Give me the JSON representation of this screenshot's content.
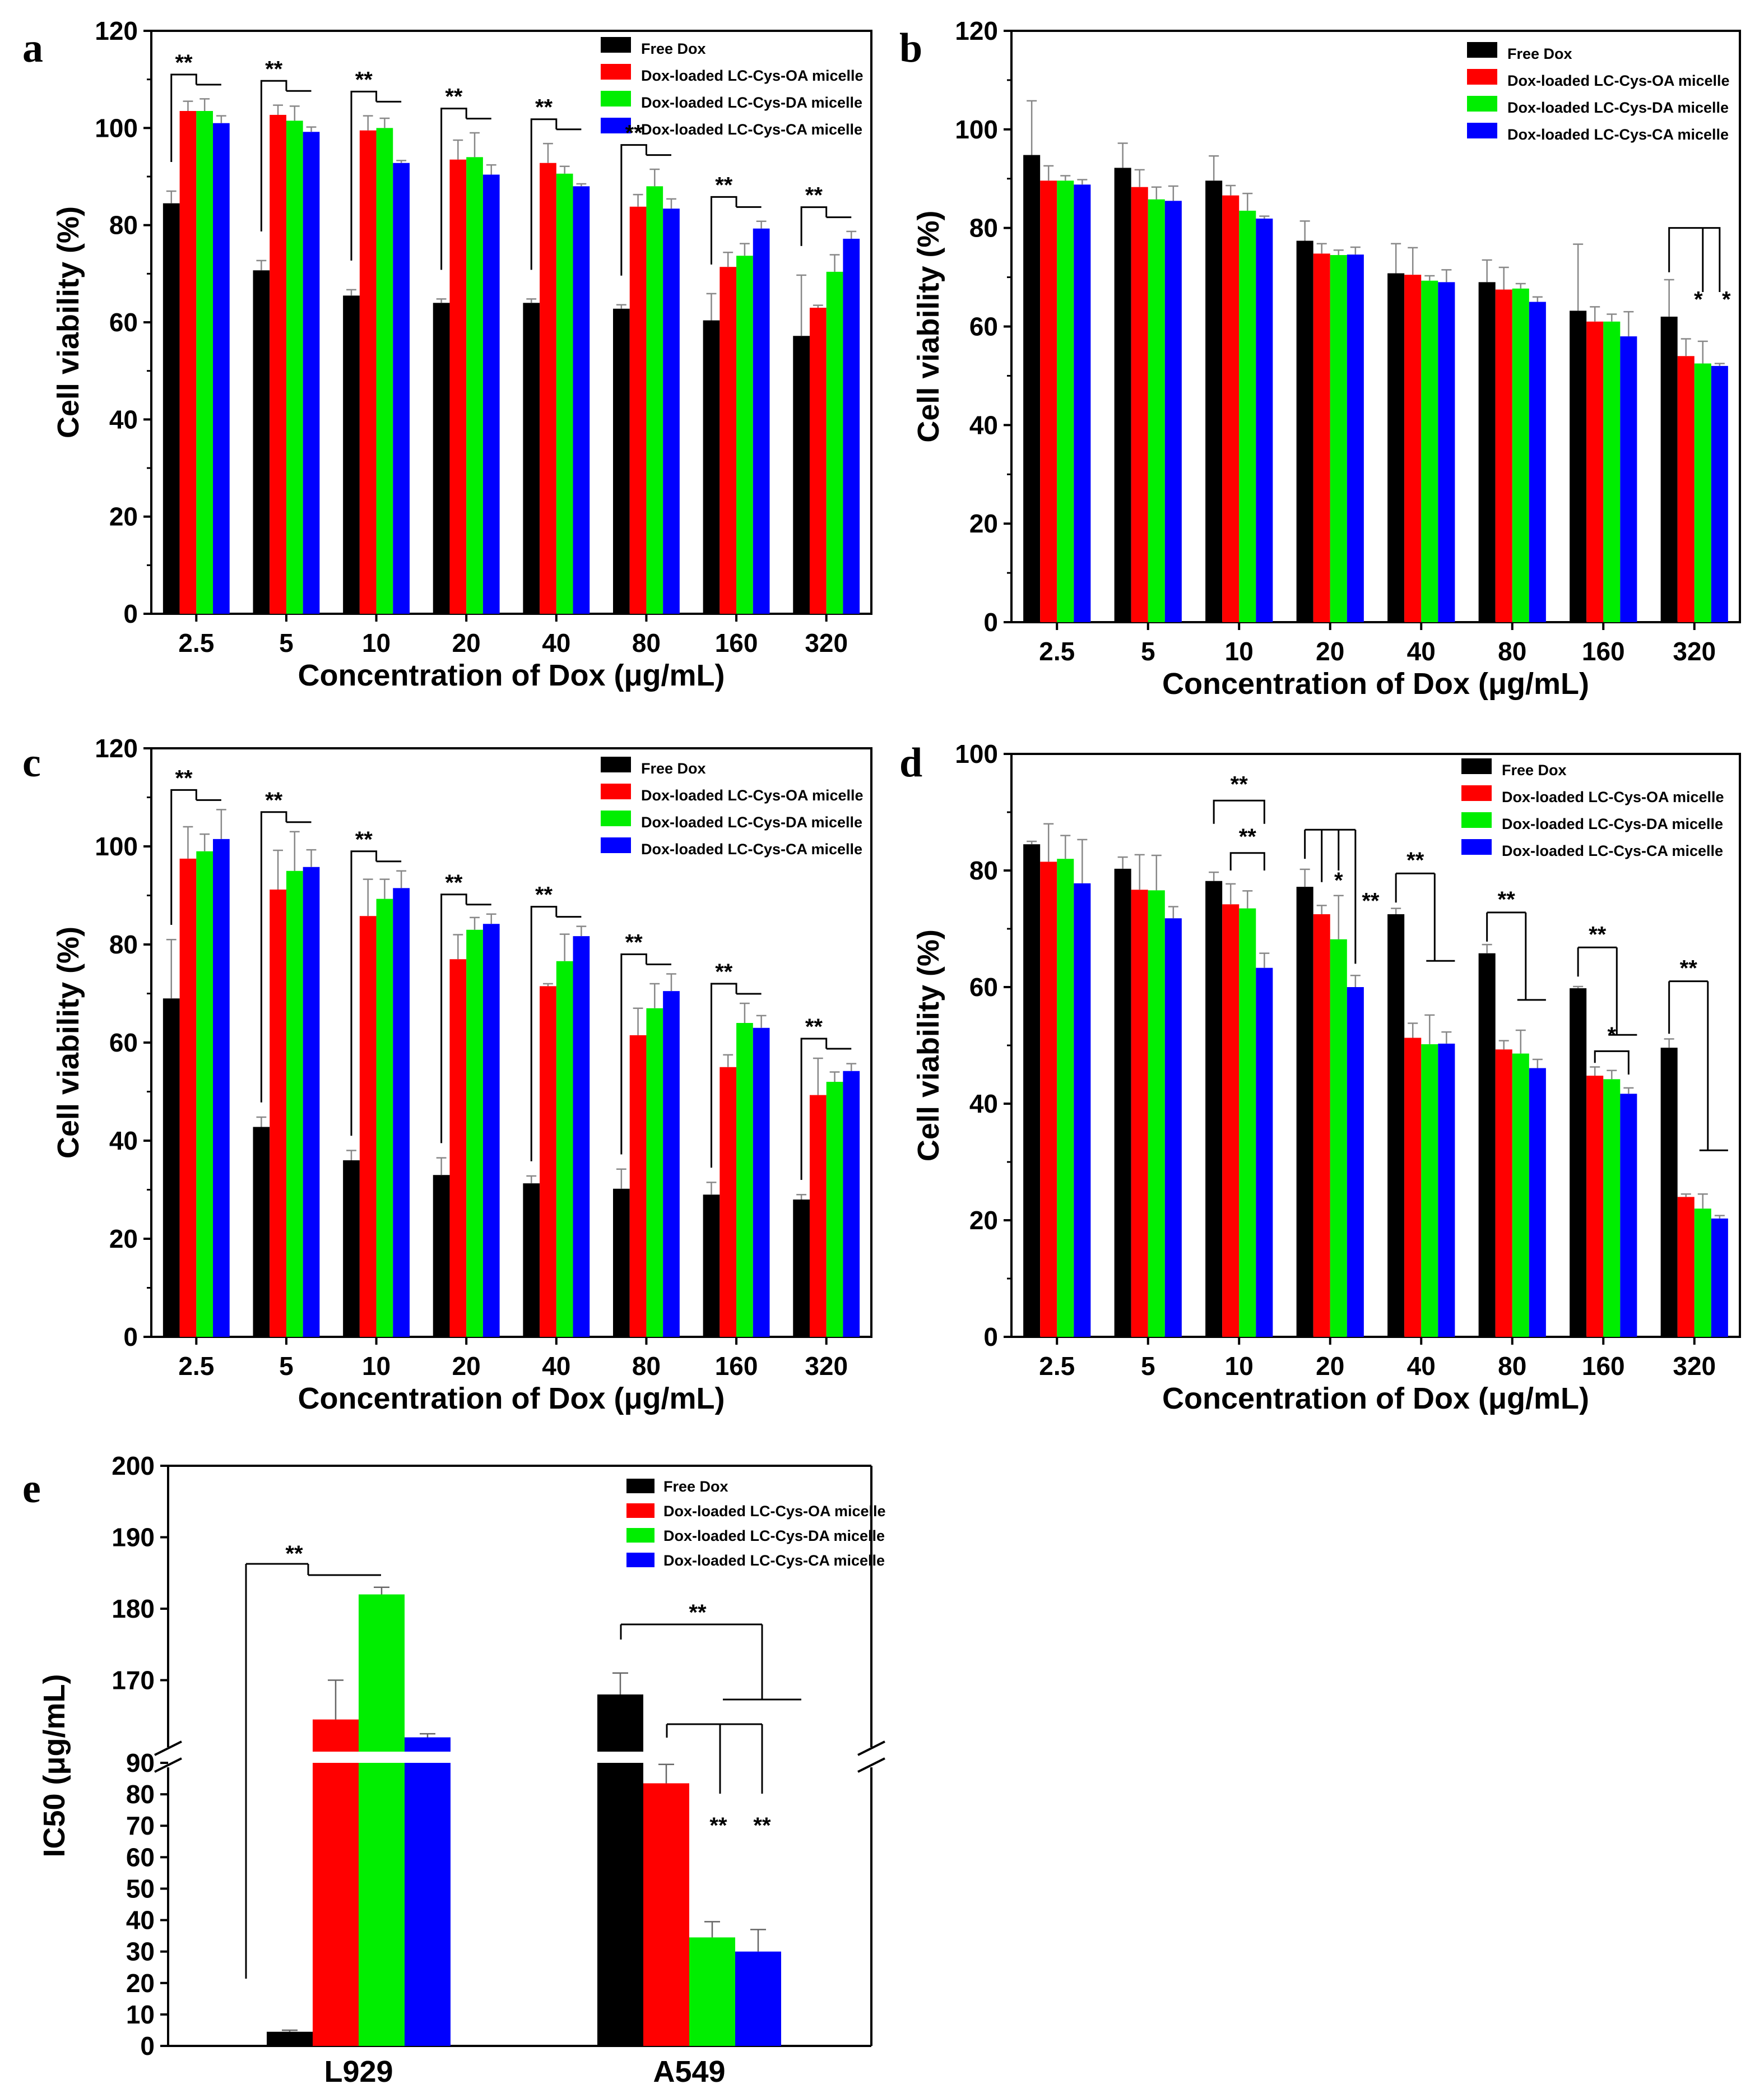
{
  "legend": [
    "Free Dox",
    "Dox-loaded LC-Cys-OA micelle",
    "Dox-loaded LC-Cys-DA micelle",
    "Dox-loaded LC-Cys-CA micelle"
  ],
  "series_colors": [
    "#000000",
    "#ff0000",
    "#00ee00",
    "#0000ff"
  ],
  "chart_data": [
    {
      "panel": "a",
      "type": "bar",
      "xlabel": "Concentration of Dox (μg/mL)",
      "ylabel": "Cell viability (%)",
      "ylim": [
        0,
        120
      ],
      "yticks": [
        "0",
        "20",
        "40",
        "60",
        "80",
        "100",
        "120"
      ],
      "categories": [
        "2.5",
        "5",
        "10",
        "20",
        "40",
        "80",
        "160",
        "320"
      ],
      "series": [
        {
          "name": "Free Dox",
          "values": [
            84.5,
            70.7,
            65.5,
            64.0,
            64.0,
            62.8,
            60.4,
            57.2
          ],
          "errors": [
            2.5,
            2.0,
            1.2,
            0.8,
            0.8,
            0.8,
            5.5,
            12.5
          ]
        },
        {
          "name": "Dox-loaded LC-Cys-OA micelle",
          "values": [
            103.5,
            102.7,
            99.5,
            93.5,
            92.8,
            83.8,
            71.4,
            63.0
          ],
          "errors": [
            2.0,
            2.0,
            3.0,
            4.0,
            4.0,
            2.5,
            3.0,
            0.5
          ]
        },
        {
          "name": "Dox-loaded LC-Cys-DA micelle",
          "values": [
            103.5,
            101.5,
            100.0,
            94.0,
            90.6,
            88.0,
            73.7,
            70.4
          ],
          "errors": [
            2.5,
            3.0,
            2.0,
            5.0,
            1.5,
            3.5,
            2.5,
            3.5
          ]
        },
        {
          "name": "Dox-loaded LC-Cys-CA micelle",
          "values": [
            101.0,
            99.2,
            92.8,
            90.4,
            88.0,
            83.4,
            79.3,
            77.2
          ],
          "errors": [
            1.5,
            1.0,
            0.5,
            2.0,
            0.5,
            2.0,
            1.5,
            1.5
          ]
        }
      ],
      "annotations": [
        "**",
        "**",
        "**",
        "**",
        "**",
        "**",
        "**",
        "**"
      ]
    },
    {
      "panel": "b",
      "type": "bar",
      "xlabel": "Concentration of Dox (μg/mL)",
      "ylabel": "Cell viability (%)",
      "ylim": [
        0,
        120
      ],
      "yticks": [
        "0",
        "20",
        "40",
        "60",
        "80",
        "100",
        "120"
      ],
      "categories": [
        "2.5",
        "5",
        "10",
        "20",
        "40",
        "80",
        "160",
        "320"
      ],
      "series": [
        {
          "name": "Free Dox",
          "values": [
            94.8,
            92.2,
            89.6,
            77.4,
            70.8,
            69.0,
            63.2,
            62.0
          ],
          "errors": [
            11.0,
            5.0,
            5.0,
            4.0,
            6.0,
            4.5,
            13.5,
            7.5
          ]
        },
        {
          "name": "Dox-loaded LC-Cys-OA micelle",
          "values": [
            89.6,
            88.3,
            86.6,
            74.8,
            70.5,
            67.5,
            61.0,
            54.0
          ],
          "errors": [
            3.0,
            3.5,
            2.0,
            2.0,
            5.5,
            4.5,
            3.0,
            3.5
          ]
        },
        {
          "name": "Dox-loaded LC-Cys-DA micelle",
          "values": [
            89.6,
            85.8,
            83.5,
            74.5,
            69.3,
            67.7,
            61.0,
            52.5
          ],
          "errors": [
            1.0,
            2.5,
            3.5,
            1.0,
            1.0,
            1.0,
            1.5,
            4.5
          ]
        },
        {
          "name": "Dox-loaded LC-Cys-CA micelle",
          "values": [
            88.8,
            85.5,
            81.9,
            74.6,
            69.0,
            65.0,
            58.0,
            52.0
          ],
          "errors": [
            1.0,
            3.0,
            0.5,
            1.5,
            2.5,
            1.0,
            5.0,
            0.5
          ]
        }
      ],
      "annotations": [
        "*",
        "*"
      ]
    },
    {
      "panel": "c",
      "type": "bar",
      "xlabel": "Concentration of Dox (μg/mL)",
      "ylabel": "Cell viability (%)",
      "ylim": [
        0,
        120
      ],
      "yticks": [
        "0",
        "20",
        "40",
        "60",
        "80",
        "100",
        "120"
      ],
      "categories": [
        "2.5",
        "5",
        "10",
        "20",
        "40",
        "80",
        "160",
        "320"
      ],
      "series": [
        {
          "name": "Free Dox",
          "values": [
            69.0,
            42.8,
            36.0,
            33.0,
            31.3,
            30.2,
            29.0,
            28.0
          ],
          "errors": [
            12.0,
            2.0,
            2.0,
            3.5,
            1.5,
            4.0,
            2.5,
            1.0
          ]
        },
        {
          "name": "Dox-loaded LC-Cys-OA micelle",
          "values": [
            97.5,
            91.2,
            85.8,
            77.0,
            71.5,
            61.5,
            55.0,
            49.3
          ],
          "errors": [
            6.5,
            8.0,
            7.5,
            5.0,
            0.5,
            5.5,
            2.5,
            7.5
          ]
        },
        {
          "name": "Dox-loaded LC-Cys-DA micelle",
          "values": [
            99.0,
            95.0,
            89.3,
            83.0,
            76.6,
            67.0,
            64.0,
            52.0
          ],
          "errors": [
            3.5,
            8.0,
            4.0,
            2.5,
            5.5,
            5.0,
            4.0,
            2.0
          ]
        },
        {
          "name": "Dox-loaded LC-Cys-CA micelle",
          "values": [
            101.5,
            95.8,
            91.5,
            84.2,
            81.7,
            70.5,
            63.0,
            54.2
          ],
          "errors": [
            6.0,
            3.5,
            3.5,
            2.0,
            2.0,
            3.5,
            2.5,
            1.5
          ]
        }
      ],
      "annotations": [
        "**",
        "**",
        "**",
        "**",
        "**",
        "**",
        "**",
        "**"
      ]
    },
    {
      "panel": "d",
      "type": "bar",
      "xlabel": "Concentration of Dox (μg/mL)",
      "ylabel": "Cell viability (%)",
      "ylim": [
        0,
        100
      ],
      "yticks": [
        "0",
        "20",
        "40",
        "60",
        "80",
        "100"
      ],
      "categories": [
        "2.5",
        "5",
        "10",
        "20",
        "40",
        "80",
        "160",
        "320"
      ],
      "series": [
        {
          "name": "Free Dox",
          "values": [
            84.5,
            80.3,
            78.2,
            77.2,
            72.5,
            65.8,
            59.8,
            49.6
          ],
          "errors": [
            0.5,
            2.0,
            1.5,
            3.0,
            1.0,
            1.5,
            0.3,
            1.5
          ]
        },
        {
          "name": "Dox-loaded LC-Cys-OA micelle",
          "values": [
            81.5,
            76.7,
            74.2,
            72.5,
            51.3,
            49.3,
            44.8,
            24.0
          ],
          "errors": [
            6.5,
            6.0,
            3.5,
            1.5,
            2.5,
            1.5,
            1.5,
            0.5
          ]
        },
        {
          "name": "Dox-loaded LC-Cys-DA micelle",
          "values": [
            82.0,
            76.6,
            73.5,
            68.2,
            50.2,
            48.6,
            44.2,
            22.0
          ],
          "errors": [
            4.0,
            6.0,
            3.0,
            7.5,
            5.0,
            4.0,
            1.5,
            2.5
          ]
        },
        {
          "name": "Dox-loaded LC-Cys-CA micelle",
          "values": [
            77.8,
            71.8,
            63.3,
            60.0,
            50.3,
            46.1,
            41.7,
            20.3
          ],
          "errors": [
            7.5,
            2.0,
            2.5,
            2.0,
            2.0,
            1.5,
            1.0,
            0.5
          ]
        }
      ],
      "annotations": [
        "**",
        "**",
        "*",
        "**",
        "**",
        "**",
        "**",
        "*",
        "**"
      ]
    },
    {
      "panel": "e",
      "type": "bar",
      "xlabel": "",
      "ylabel": "IC50 (μg/mL)",
      "broken_axis": true,
      "lower_ylim": [
        0,
        90
      ],
      "upper_ylim": [
        160,
        200
      ],
      "yticks_lower": [
        "0",
        "10",
        "20",
        "30",
        "40",
        "50",
        "60",
        "70",
        "80",
        "90"
      ],
      "yticks_upper": [
        "170",
        "180",
        "190",
        "200"
      ],
      "categories": [
        "L929",
        "A549"
      ],
      "series": [
        {
          "name": "Free Dox",
          "values": [
            4.5,
            168.0
          ],
          "errors": [
            0.5,
            3.0
          ]
        },
        {
          "name": "Dox-loaded LC-Cys-OA micelle",
          "values": [
            164.5,
            83.5
          ],
          "errors": [
            5.5,
            6.0
          ]
        },
        {
          "name": "Dox-loaded LC-Cys-DA micelle",
          "values": [
            182.0,
            34.5
          ],
          "errors": [
            1.0,
            5.0
          ]
        },
        {
          "name": "Dox-loaded LC-Cys-CA micelle",
          "values": [
            162.0,
            30.0
          ],
          "errors": [
            0.5,
            7.0
          ]
        }
      ],
      "annotations": [
        "**",
        "**",
        "**",
        "**"
      ]
    }
  ]
}
